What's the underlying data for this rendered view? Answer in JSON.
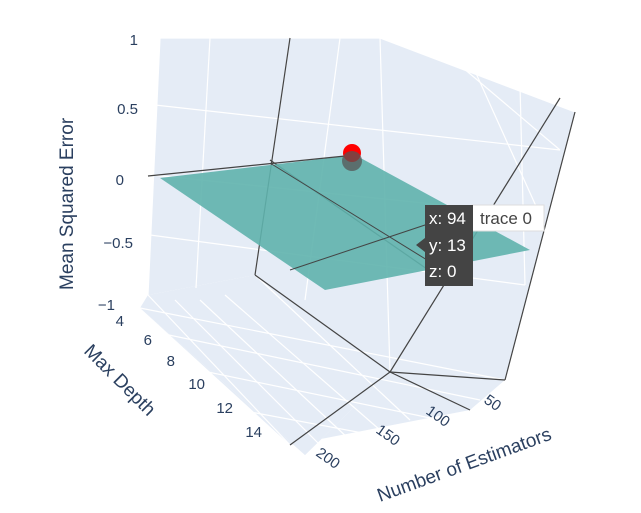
{
  "chart_data": {
    "type": "surface3d",
    "title": "",
    "x_axis": {
      "title": "Number of Estimators",
      "ticks": [
        "50",
        "100",
        "150",
        "200"
      ]
    },
    "y_axis": {
      "title": "Max Depth",
      "ticks": [
        "4",
        "6",
        "8",
        "10",
        "12",
        "14"
      ]
    },
    "z_axis": {
      "title": "Mean Squared Error",
      "ticks": [
        "1",
        "0.5",
        "0",
        "−0.5",
        "−1"
      ],
      "range": [
        -1,
        1
      ]
    },
    "surface": {
      "name": "trace 0",
      "z": 0,
      "color": "#5fb3ad"
    },
    "marker": {
      "x": 94,
      "y": 13,
      "z": 0,
      "color": "#ff0000"
    },
    "hover": {
      "x_label": "x: 94",
      "y_label": "y: 13",
      "z_label": "z: 0",
      "trace_name": "trace 0"
    }
  }
}
